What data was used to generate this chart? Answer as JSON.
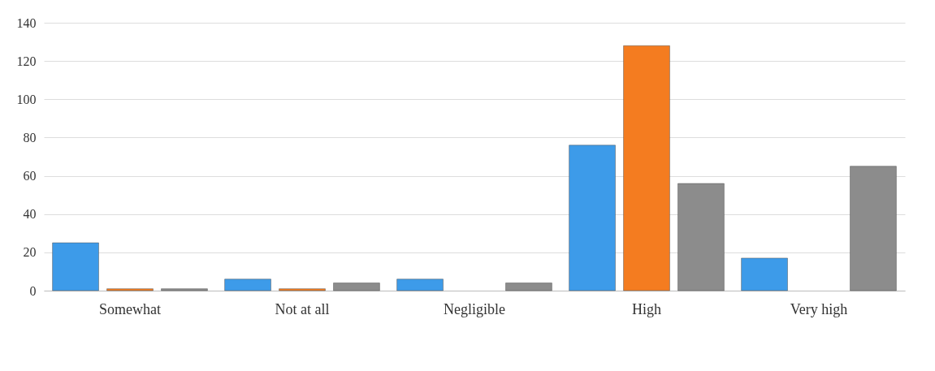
{
  "chart_data": {
    "type": "bar",
    "categories": [
      "Somewhat",
      "Not at all",
      "Negligible",
      "High",
      "Very high"
    ],
    "series": [
      {
        "color": "#3d9be9",
        "values": [
          25,
          6,
          6,
          76,
          17
        ]
      },
      {
        "color": "#f47c20",
        "values": [
          1,
          1,
          null,
          128,
          null
        ]
      },
      {
        "color": "#8c8c8c",
        "values": [
          1,
          4,
          4,
          56,
          65
        ]
      }
    ],
    "ylim": [
      0,
      140
    ],
    "yticks": [
      0,
      20,
      40,
      60,
      80,
      100,
      120,
      140
    ],
    "grid": "y",
    "legend": false
  }
}
